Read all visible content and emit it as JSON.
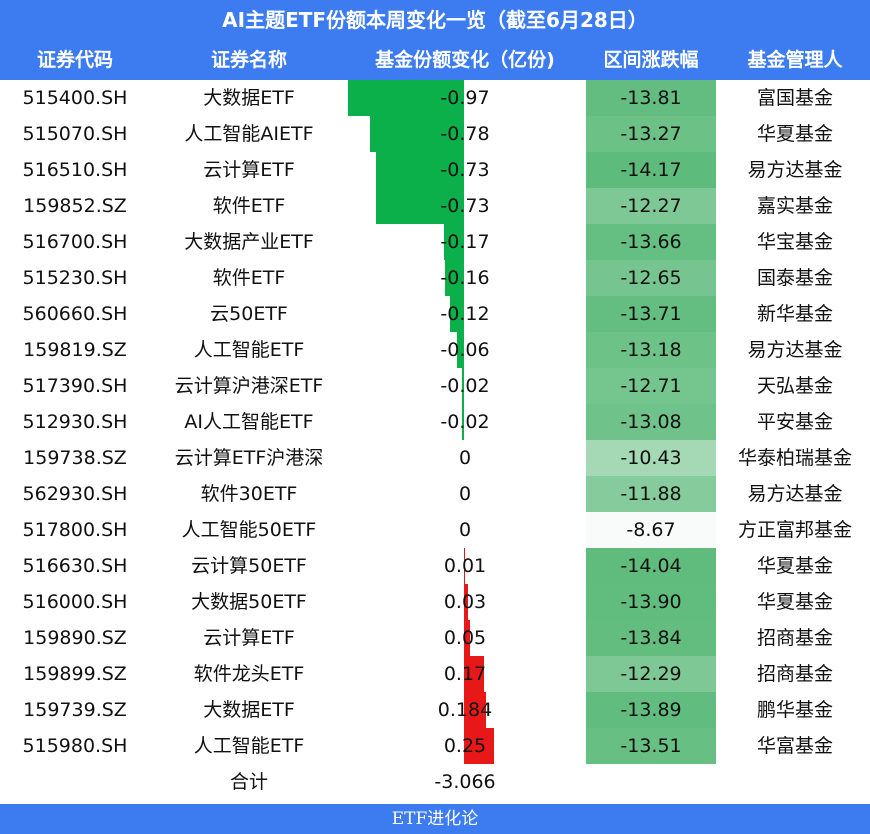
{
  "title": "AI主题ETF份额本周变化一览（截至6月28日）",
  "headers": [
    "证券代码",
    "证券名称",
    "基金份额变化（亿份)",
    "区间涨跌幅",
    "基金管理人"
  ],
  "rows": [
    {
      "code": "515400.SH",
      "name": "大数据ETF",
      "change": "-0.97",
      "pct": "-13.81",
      "manager": "富国基金"
    },
    {
      "code": "515070.SH",
      "name": "人工智能AIETF",
      "change": "-0.78",
      "pct": "-13.27",
      "manager": "华夏基金"
    },
    {
      "code": "516510.SH",
      "name": "云计算ETF",
      "change": "-0.73",
      "pct": "-14.17",
      "manager": "易方达基金"
    },
    {
      "code": "159852.SZ",
      "name": "软件ETF",
      "change": "-0.73",
      "pct": "-12.27",
      "manager": "嘉实基金"
    },
    {
      "code": "516700.SH",
      "name": "大数据产业ETF",
      "change": "-0.17",
      "pct": "-13.66",
      "manager": "华宝基金"
    },
    {
      "code": "515230.SH",
      "name": "软件ETF",
      "change": "-0.16",
      "pct": "-12.65",
      "manager": "国泰基金"
    },
    {
      "code": "560660.SH",
      "name": "云50ETF",
      "change": "-0.12",
      "pct": "-13.71",
      "manager": "新华基金"
    },
    {
      "code": "159819.SZ",
      "name": "人工智能ETF",
      "change": "-0.06",
      "pct": "-13.18",
      "manager": "易方达基金"
    },
    {
      "code": "517390.SH",
      "name": "云计算沪港深ETF",
      "change": "-0.02",
      "pct": "-12.71",
      "manager": "天弘基金"
    },
    {
      "code": "512930.SH",
      "name": "AI人工智能ETF",
      "change": "-0.02",
      "pct": "-13.08",
      "manager": "平安基金"
    },
    {
      "code": "159738.SZ",
      "name": "云计算ETF沪港深",
      "change": "0",
      "pct": "-10.43",
      "manager": "华泰柏瑞基金"
    },
    {
      "code": "562930.SH",
      "name": "软件30ETF",
      "change": "0",
      "pct": "-11.88",
      "manager": "易方达基金"
    },
    {
      "code": "517800.SH",
      "name": "人工智能50ETF",
      "change": "0",
      "pct": "-8.67",
      "manager": "方正富邦基金"
    },
    {
      "code": "516630.SH",
      "name": "云计算50ETF",
      "change": "0.01",
      "pct": "-14.04",
      "manager": "华夏基金"
    },
    {
      "code": "516000.SH",
      "name": "大数据50ETF",
      "change": "0.03",
      "pct": "-13.90",
      "manager": "华夏基金"
    },
    {
      "code": "159890.SZ",
      "name": "云计算ETF",
      "change": "0.05",
      "pct": "-13.84",
      "manager": "招商基金"
    },
    {
      "code": "159899.SZ",
      "name": "软件龙头ETF",
      "change": "0.17",
      "pct": "-12.29",
      "manager": "招商基金"
    },
    {
      "code": "159739.SZ",
      "name": "大数据ETF",
      "change": "0.184",
      "pct": "-13.89",
      "manager": "鹏华基金"
    },
    {
      "code": "515980.SH",
      "name": "人工智能ETF",
      "change": "0.25",
      "pct": "-13.51",
      "manager": "华富基金"
    }
  ],
  "total": {
    "label": "合计",
    "value": "-3.066"
  },
  "footer": "ETF进化论",
  "colors": {
    "header": "#3d7cf0",
    "negative_bar": "#0bb04b",
    "positive_bar": "#e81818",
    "heat_strong": "#5dbb7b",
    "heat_weak": "#f8fbf9"
  },
  "chart_data": {
    "type": "table",
    "title": "AI主题ETF份额本周变化一览（截至6月28日）",
    "columns": [
      "证券代码",
      "证券名称",
      "基金份额变化（亿份)",
      "区间涨跌幅",
      "基金管理人"
    ],
    "share_change": [
      -0.97,
      -0.78,
      -0.73,
      -0.73,
      -0.17,
      -0.16,
      -0.12,
      -0.06,
      -0.02,
      -0.02,
      0,
      0,
      0,
      0.01,
      0.03,
      0.05,
      0.17,
      0.184,
      0.25
    ],
    "period_return": [
      -13.81,
      -13.27,
      -14.17,
      -12.27,
      -13.66,
      -12.65,
      -13.71,
      -13.18,
      -12.71,
      -13.08,
      -10.43,
      -11.88,
      -8.67,
      -14.04,
      -13.9,
      -13.84,
      -12.29,
      -13.89,
      -13.51
    ],
    "total_change": -3.066
  }
}
